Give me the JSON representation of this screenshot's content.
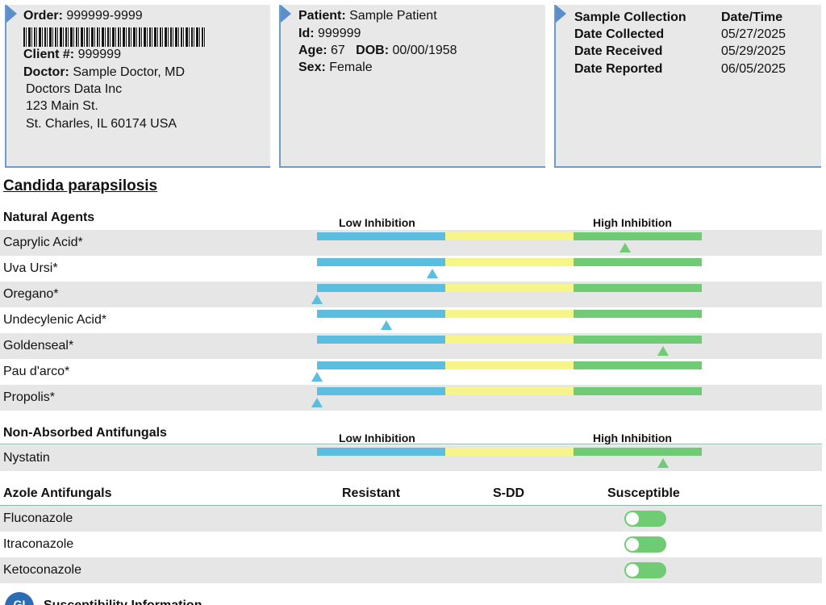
{
  "order_box": {
    "order_label": "Order:",
    "order_value": "999999-9999",
    "client_label": "Client #:",
    "client_value": "999999",
    "doctor_label": "Doctor:",
    "doctor_value": "Sample Doctor, MD",
    "address_lines": [
      "Doctors Data Inc",
      "123 Main St.",
      "St. Charles, IL 60174 USA"
    ]
  },
  "patient_box": {
    "patient_label": "Patient:",
    "patient_value": "Sample Patient",
    "id_label": "Id:",
    "id_value": "999999",
    "age_label": "Age:",
    "age_value": "67",
    "dob_label": "DOB:",
    "dob_value": "00/00/1958",
    "sex_label": "Sex:",
    "sex_value": "Female"
  },
  "dates_box": {
    "header_left": "Sample Collection",
    "header_right": "Date/Time",
    "rows": [
      {
        "label": "Date Collected",
        "value": "05/27/2025"
      },
      {
        "label": "Date Received",
        "value": "05/29/2025"
      },
      {
        "label": "Date Reported",
        "value": "06/05/2025"
      }
    ]
  },
  "organism": "Candida parapsilosis",
  "natural_agents": {
    "heading": "Natural Agents",
    "low_label": "Low Inhibition",
    "high_label": "High Inhibition",
    "items": [
      {
        "name": "Caprylic Acid*",
        "level": 0.8
      },
      {
        "name": "Uva Ursi*",
        "level": 0.3
      },
      {
        "name": "Oregano*",
        "level": 0.0
      },
      {
        "name": "Undecylenic Acid*",
        "level": 0.18
      },
      {
        "name": "Goldenseal*",
        "level": 0.9
      },
      {
        "name": "Pau d'arco*",
        "level": 0.0
      },
      {
        "name": "Propolis*",
        "level": 0.0
      }
    ]
  },
  "non_absorbed": {
    "heading": "Non-Absorbed Antifungals",
    "low_label": "Low Inhibition",
    "high_label": "High Inhibition",
    "items": [
      {
        "name": "Nystatin",
        "level": 0.9
      }
    ]
  },
  "azole": {
    "heading": "Azole Antifungals",
    "col_resistant": "Resistant",
    "col_sdd": "S-DD",
    "col_susceptible": "Susceptible",
    "items": [
      {
        "name": "Fluconazole",
        "result": "Susceptible"
      },
      {
        "name": "Itraconazole",
        "result": "Susceptible"
      },
      {
        "name": "Ketoconazole",
        "result": "Susceptible"
      }
    ]
  },
  "footer": {
    "logo_text": "GI",
    "text": "Susceptibility Information"
  },
  "colors": {
    "low": "#5bbde0",
    "mid": "#f5f58a",
    "high": "#6fcb74",
    "box_accent": "#5b8fc9"
  }
}
